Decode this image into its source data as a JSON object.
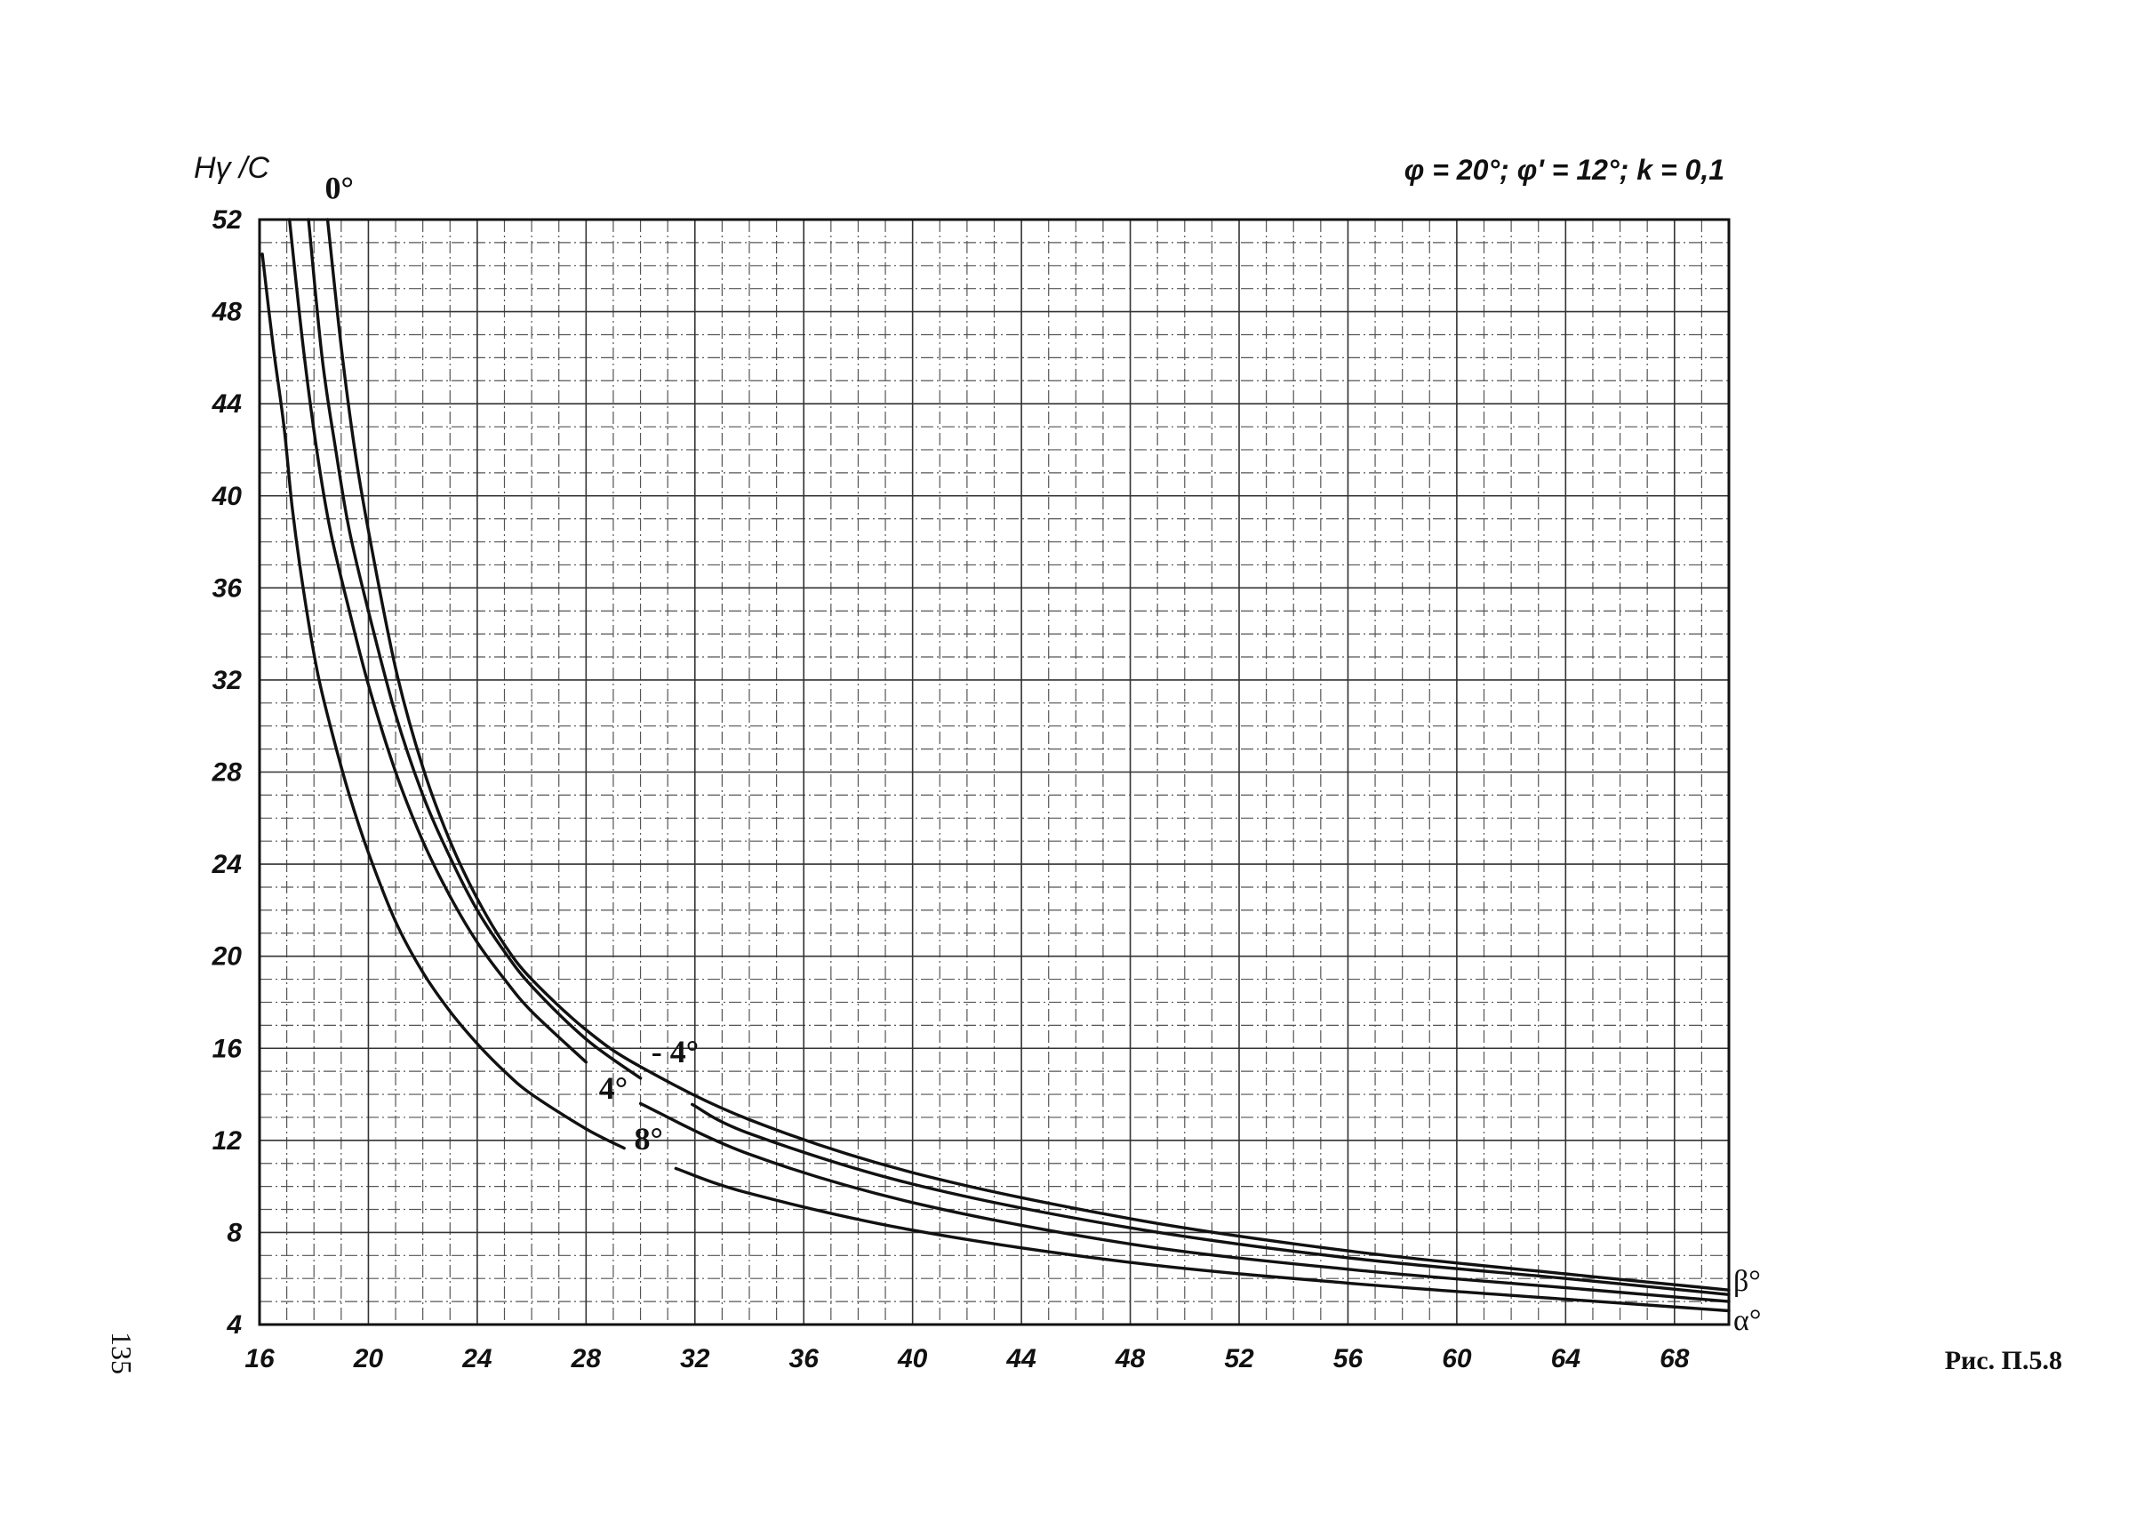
{
  "chart_data": {
    "type": "line",
    "y_label": "Hγ /C",
    "parameters": "φ = 20°; φ' = 12°; k = 0,1",
    "x_right_label": "α°",
    "curves_right_label": "β°",
    "figure_caption": "Рис. П.5.8",
    "page_number": "135",
    "xlim": [
      16,
      70
    ],
    "ylim": [
      4,
      52
    ],
    "x_ticks": [
      "16",
      "20",
      "24",
      "28",
      "32",
      "36",
      "40",
      "44",
      "48",
      "52",
      "56",
      "60",
      "64",
      "68"
    ],
    "y_ticks": [
      "4",
      "8",
      "12",
      "16",
      "20",
      "24",
      "28",
      "32",
      "36",
      "40",
      "44",
      "48",
      "52"
    ],
    "series": [
      {
        "name": "0°",
        "x": [
          18.5,
          19,
          19.5,
          20,
          21,
          22,
          23,
          24,
          25,
          26,
          28,
          30,
          34,
          40,
          48,
          56,
          64,
          70
        ],
        "y": [
          52,
          46.5,
          42,
          38.5,
          32.5,
          28.2,
          25,
          22.5,
          20.5,
          19,
          16.8,
          15.2,
          12.9,
          10.6,
          8.6,
          7.2,
          6.2,
          5.5
        ]
      },
      {
        "name": "- 4°",
        "x": [
          17.8,
          18.3,
          18.8,
          19.3,
          20,
          21,
          22,
          23,
          24,
          25,
          26,
          28,
          30,
          34,
          40,
          48,
          56,
          64,
          70
        ],
        "y": [
          52,
          46,
          42,
          38.5,
          35,
          30.5,
          27,
          24.3,
          22,
          20.2,
          18.7,
          16.4,
          14.7,
          12.3,
          10.1,
          8.2,
          6.9,
          6,
          5.3
        ]
      },
      {
        "name": "4°",
        "x": [
          17.1,
          17.6,
          18.1,
          18.6,
          19.3,
          20,
          21,
          22,
          23,
          24,
          25,
          26,
          28,
          30,
          34,
          40,
          48,
          56,
          64,
          70
        ],
        "y": [
          52,
          46.5,
          42,
          38.5,
          35,
          31.8,
          28,
          25,
          22.6,
          20.6,
          19,
          17.6,
          15.4,
          13.6,
          11.4,
          9.3,
          7.5,
          6.4,
          5.6,
          5
        ]
      },
      {
        "name": "8°",
        "x": [
          16.1,
          16.5,
          16.9,
          17.2,
          17.6,
          18.1,
          18.6,
          19.3,
          20,
          21,
          22,
          23,
          24,
          25,
          26,
          28,
          30,
          34,
          40,
          48,
          56,
          64,
          70
        ],
        "y": [
          50.5,
          46.5,
          43,
          39.5,
          36,
          32.5,
          30,
          27,
          24.5,
          21.5,
          19.3,
          17.6,
          16.2,
          15,
          14,
          12.5,
          11.3,
          9.7,
          8.1,
          6.7,
          5.8,
          5.1,
          4.6
        ]
      }
    ]
  }
}
